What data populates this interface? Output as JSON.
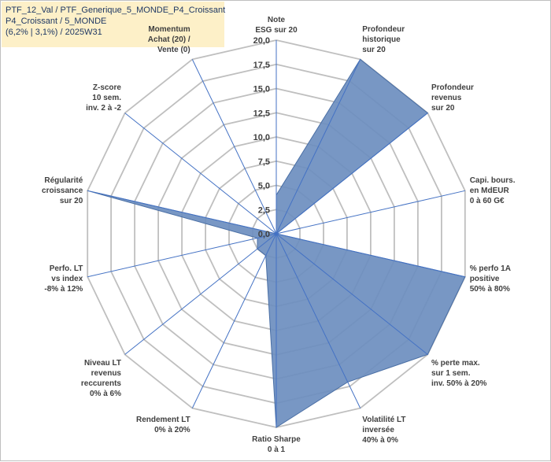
{
  "title": {
    "line1": "PTF_12_Val / PTF_Generique_5_MONDE_P4_Croissant",
    "line2": "P4_Croissant / 5_MONDE",
    "line3": "(6,2% | 3,1%) / 2025W31"
  },
  "chart_data": {
    "type": "radar",
    "rlim": [
      0,
      20
    ],
    "ticks": [
      0,
      2.5,
      5,
      7.5,
      10,
      12.5,
      15,
      17.5,
      20
    ],
    "tick_labels": [
      "0,0",
      "2,5",
      "5,0",
      "7,5",
      "10,0",
      "12,5",
      "15,0",
      "17,5",
      "20,0"
    ],
    "categories": [
      {
        "label": [
          "Note",
          "ESG sur 20"
        ],
        "value": 4.0
      },
      {
        "label": [
          "Profondeur",
          "historique",
          "sur 20"
        ],
        "value": 20.0
      },
      {
        "label": [
          "Profondeur",
          "revenus",
          "sur 20"
        ],
        "value": 20.0
      },
      {
        "label": [
          "Capi. bours.",
          "en MdEUR",
          "0 à 60 G€"
        ],
        "value": 0.0
      },
      {
        "label": [
          "% perfo 1A",
          "positive",
          "50% à 80%"
        ],
        "value": 20.0
      },
      {
        "label": [
          "% perte max.",
          "sur 1 sem.",
          "inv. 50% à 20%"
        ],
        "value": 20.0
      },
      {
        "label": [
          "Volatilité LT",
          "inversée",
          "40% à 0%"
        ],
        "value": 17.0
      },
      {
        "label": [
          "Ratio Sharpe",
          "0 à 1"
        ],
        "value": 20.0
      },
      {
        "label": [
          "Rendement LT",
          "0% à 20%"
        ],
        "value": 2.5
      },
      {
        "label": [
          "Niveau LT",
          "revenus",
          "reccurents",
          "0% à 6%"
        ],
        "value": 2.5
      },
      {
        "label": [
          "Perfo. LT",
          "vs index",
          "-8% à 12%"
        ],
        "value": 2.0
      },
      {
        "label": [
          "Régularité",
          "croissance",
          "sur 20"
        ],
        "value": 20.0
      },
      {
        "label": [
          "Z-score",
          "10 sem.",
          "inv. 2 à -2"
        ],
        "value": 0.0
      },
      {
        "label": [
          "Momentum",
          "Achat (20) /",
          "Vente (0)"
        ],
        "value": 0.0
      }
    ],
    "grid": true,
    "legend": "none"
  },
  "colors": {
    "fill": "#6c8ebf",
    "stroke": "#4a6fa5",
    "grid": "#bfbfbf",
    "spoke": "#4472c4",
    "title_bg": "#fdf0c8"
  }
}
